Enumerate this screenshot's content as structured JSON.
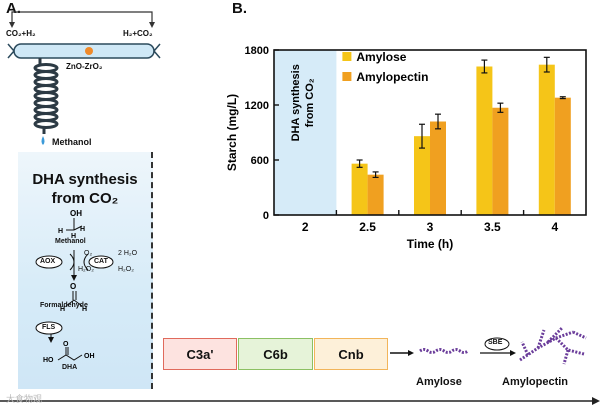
{
  "panel_a": {
    "label": "A.",
    "co2_h2_left": "CO₂+H₂",
    "h2_co2_right": "H₂+CO₂",
    "catalyst": "ZnO-ZrO₂",
    "methanol_out": "Methanol",
    "dha_title_1": "DHA synthesis",
    "dha_title_2": "from CO₂",
    "methanol": "Methanol",
    "aox": "AOX",
    "o2": "O₂",
    "h2o2_left": "H₂O₂",
    "cat": "CAT",
    "h2o_2": "2 H₂O",
    "h2o2_right": "H₂O₂",
    "formaldehyde": "Formaldehyde",
    "fls": "FLS",
    "dha": "DHA",
    "c3a": "C3a'",
    "c6b": "C6b",
    "cnb": "Cnb",
    "sbe": "SBE",
    "amylose": "Amylose",
    "amylopectin": "Amylopectin",
    "watermark": "大食物观"
  },
  "chart_data": {
    "type": "bar",
    "panel_label": "B.",
    "categories": [
      "2",
      "2.5",
      "3",
      "3.5",
      "4"
    ],
    "series": [
      {
        "name": "Amylose",
        "color": "#f5c518",
        "values": [
          null,
          560,
          860,
          1620,
          1640
        ],
        "errors": [
          null,
          40,
          130,
          70,
          80
        ]
      },
      {
        "name": "Amylopectin",
        "color": "#f0a020",
        "values": [
          null,
          440,
          1020,
          1170,
          1280
        ],
        "errors": [
          null,
          30,
          80,
          50,
          10
        ]
      }
    ],
    "xlabel": "Time (h)",
    "ylabel": "Starch (mg/L)",
    "yticks": [
      0,
      600,
      1200,
      1800
    ],
    "ylim": [
      0,
      1800
    ],
    "region_label_1": "DHA synthesis",
    "region_label_2": "from CO₂",
    "legend_position": "top-left"
  }
}
